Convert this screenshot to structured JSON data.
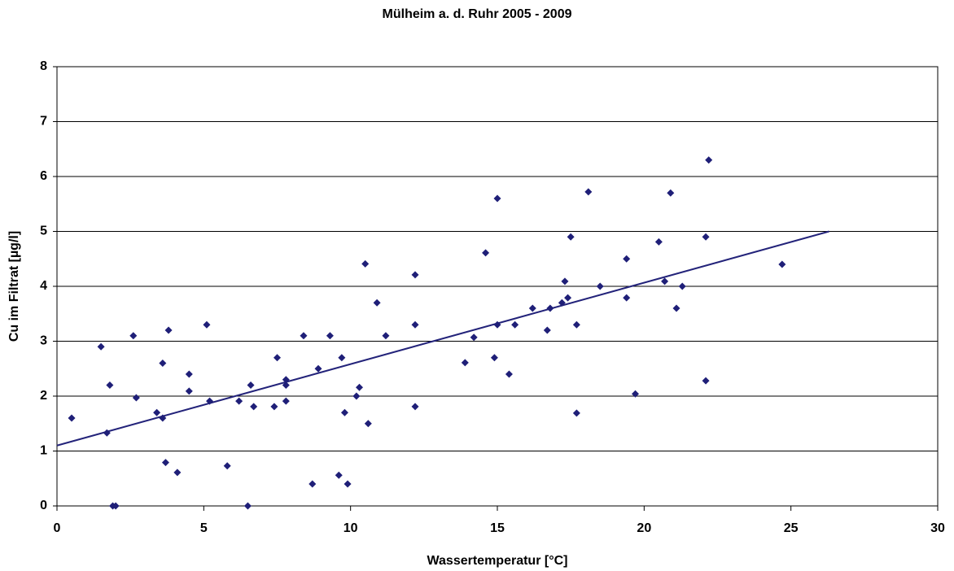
{
  "chart_data": {
    "type": "scatter",
    "title": "Mülheim a. d. Ruhr 2005 - 2009",
    "x_label": "Wassertemperatur [°C]",
    "y_label": "Cu im Filtrat [µg/l]",
    "xlim": [
      0,
      30
    ],
    "xticks": [
      0,
      5,
      10,
      15,
      20,
      25,
      30
    ],
    "ylim": [
      0,
      8
    ],
    "yticks": [
      0,
      1,
      2,
      3,
      4,
      5,
      6,
      7,
      8
    ],
    "grid": true,
    "color": "#1f1f78",
    "x": [
      0.5,
      1.5,
      1.7,
      1.8,
      1.9,
      2.0,
      2.6,
      2.7,
      3.4,
      3.6,
      3.6,
      3.8,
      3.7,
      4.1,
      4.5,
      4.5,
      5.1,
      5.2,
      5.8,
      6.2,
      6.5,
      6.6,
      6.7,
      7.4,
      7.5,
      7.8,
      7.8,
      7.8,
      8.4,
      8.7,
      8.9,
      9.3,
      9.6,
      9.7,
      9.8,
      9.9,
      10.2,
      10.3,
      10.5,
      10.6,
      10.9,
      11.2,
      12.2,
      12.2,
      12.2,
      13.9,
      14.2,
      14.6,
      14.9,
      15.0,
      15.0,
      15.4,
      15.6,
      16.2,
      16.7,
      16.8,
      17.2,
      17.3,
      17.4,
      17.5,
      17.7,
      17.7,
      18.1,
      18.5,
      19.4,
      19.4,
      19.7,
      20.5,
      20.7,
      20.9,
      21.1,
      21.3,
      22.1,
      22.1,
      22.2,
      24.7
    ],
    "values": [
      1.6,
      2.9,
      1.33,
      2.2,
      0,
      0,
      3.1,
      1.97,
      1.7,
      2.6,
      1.6,
      3.2,
      0.79,
      0.61,
      2.4,
      2.09,
      3.3,
      1.91,
      0.73,
      1.91,
      0,
      2.2,
      1.81,
      1.81,
      2.7,
      2.3,
      2.2,
      1.91,
      3.1,
      0.4,
      2.5,
      3.1,
      0.56,
      2.7,
      1.7,
      0.4,
      2.0,
      2.16,
      4.41,
      1.5,
      3.7,
      3.1,
      4.21,
      3.3,
      1.81,
      2.61,
      3.07,
      4.61,
      2.7,
      5.6,
      3.3,
      2.4,
      3.3,
      3.6,
      3.2,
      3.6,
      3.7,
      4.09,
      3.79,
      4.9,
      3.3,
      1.69,
      5.72,
      4.0,
      4.5,
      3.79,
      2.04,
      4.81,
      4.09,
      5.7,
      3.6,
      4.0,
      4.9,
      2.28,
      6.3,
      4.4
    ],
    "trendline": {
      "x": [
        0,
        26.3
      ],
      "values": [
        1.1,
        5.0
      ],
      "color": "#23237a"
    }
  }
}
